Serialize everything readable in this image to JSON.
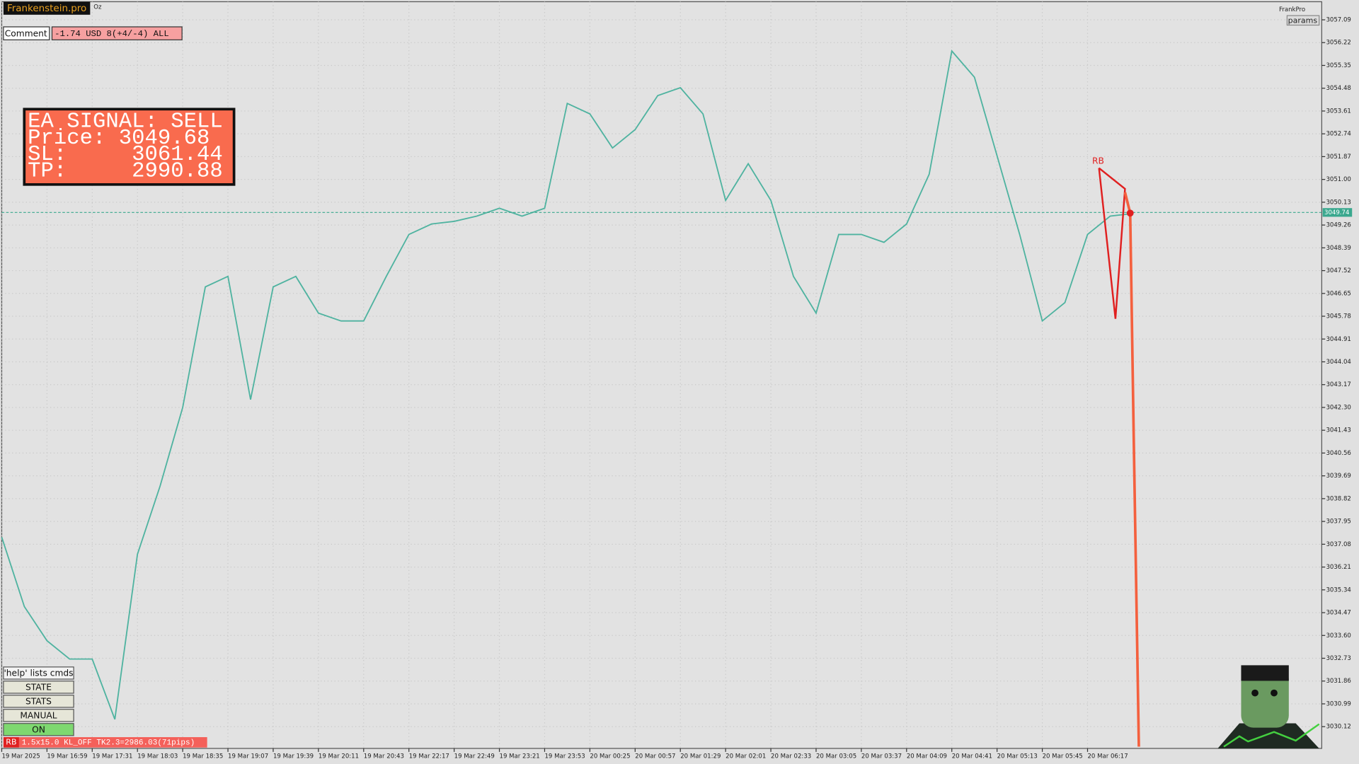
{
  "header": {
    "brand": "Frankenstein.pro",
    "symbol": "Oz",
    "account": "FrankPro",
    "params": "params"
  },
  "comment": {
    "label": "Comment",
    "value": "-1.74 USD 8(+4/-4) ALL"
  },
  "signal": {
    "lines": [
      "EA SIGNAL: SELL",
      "Price: 3049.68",
      "SL:     3061.44",
      "TP:     2990.88"
    ]
  },
  "marker": {
    "label": "RB"
  },
  "buttons": [
    "'help' lists cmds",
    "STATE",
    "STATS",
    "MANUAL",
    "ON"
  ],
  "status": {
    "tag": "RB",
    "text": "1.5x15.0 KL_OFF TK2.3=2986.03(71pips)"
  },
  "chart_data": {
    "type": "line",
    "color": "#4fb3a0",
    "grid": true,
    "current_price": 3049.74,
    "categories": [
      "19 Mar 2025",
      null,
      "19 Mar 16:59",
      null,
      "19 Mar 17:31",
      null,
      "19 Mar 18:03",
      null,
      "19 Mar 18:35",
      null,
      "19 Mar 19:07",
      null,
      "19 Mar 19:39",
      null,
      "19 Mar 20:11",
      null,
      "19 Mar 20:43",
      null,
      "19 Mar 22:17",
      null,
      "19 Mar 22:49",
      null,
      "19 Mar 23:21",
      null,
      "19 Mar 23:53",
      null,
      "20 Mar 00:25",
      null,
      "20 Mar 00:57",
      null,
      "20 Mar 01:29",
      null,
      "20 Mar 02:01",
      null,
      "20 Mar 02:33",
      null,
      "20 Mar 03:05",
      null,
      "20 Mar 03:37",
      null,
      "20 Mar 04:09",
      null,
      "20 Mar 04:41",
      null,
      "20 Mar 05:13",
      null,
      "20 Mar 05:45",
      null,
      "20 Mar 06:17",
      null,
      null
    ],
    "values": [
      3037.35,
      3034.7,
      3033.4,
      3032.7,
      3032.7,
      3030.4,
      3036.7,
      3039.3,
      3042.3,
      3046.9,
      3047.3,
      3042.6,
      3046.9,
      3047.3,
      3045.9,
      3045.6,
      3045.6,
      3047.3,
      3048.9,
      3049.3,
      3049.4,
      3049.6,
      3049.9,
      3049.6,
      3049.9,
      3053.9,
      3053.5,
      3052.2,
      3052.9,
      3054.2,
      3054.5,
      3053.5,
      3050.2,
      3051.6,
      3050.2,
      3047.3,
      3045.9,
      3048.9,
      3048.9,
      3048.6,
      3049.3,
      3051.2,
      3055.9,
      3054.9,
      3051.9,
      3048.9,
      3045.6,
      3046.3,
      3048.9,
      3049.6,
      3049.7
    ],
    "ylim": [
      3029.29,
      3057.78
    ],
    "yticks": [
      3057.09,
      3056.22,
      3055.35,
      3054.48,
      3053.61,
      3052.74,
      3051.87,
      {
        "value": 3051.0,
        "label": "3051.00"
      },
      3050.13,
      3049.26,
      3048.39,
      3047.52,
      3046.65,
      3045.78,
      3044.91,
      3044.04,
      3043.17,
      {
        "value": 3042.3,
        "label": "3042.30"
      },
      3041.43,
      3040.56,
      3039.69,
      3038.82,
      3037.95,
      3037.08,
      3036.21,
      3035.34,
      3034.47,
      {
        "value": 3033.6,
        "label": "3033.60"
      },
      3032.73,
      3031.86,
      3030.99,
      3030.12
    ]
  }
}
